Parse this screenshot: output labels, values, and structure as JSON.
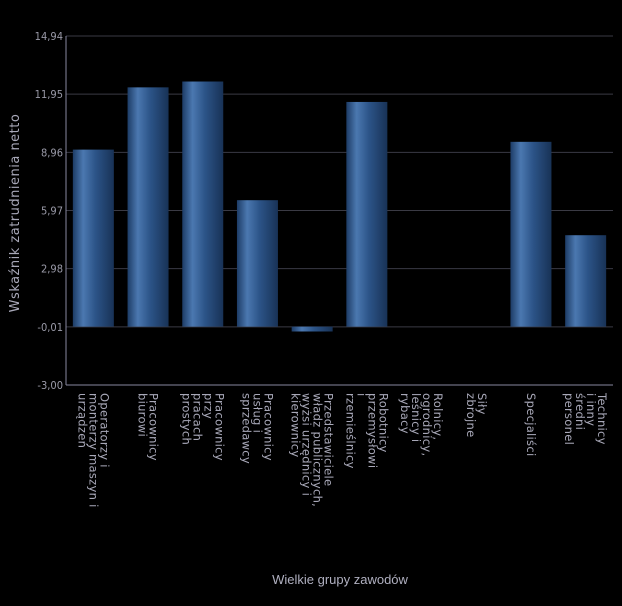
{
  "chart_data": {
    "type": "bar",
    "xlabel": "Wielkie grupy zawodów",
    "ylabel": "Wskaźnik zatrudnienia netto",
    "ylim": [
      -3.0,
      14.94
    ],
    "yticks": [
      "-3,00",
      "-0,01",
      "2,98",
      "5,97",
      "8,96",
      "11,95",
      "14,94"
    ],
    "ytick_values": [
      -3.0,
      -0.01,
      2.98,
      5.97,
      8.96,
      11.95,
      14.94
    ],
    "grid": true,
    "categories": [
      [
        "Operatorzy i",
        "monterzy maszyn i",
        "urządzeń"
      ],
      [
        "Pracownicy",
        "biurowi"
      ],
      [
        "Pracownicy",
        "przy",
        "pracach",
        "prostych"
      ],
      [
        "Pracownicy",
        "usług i",
        "sprzedawcy"
      ],
      [
        "Przedstawiciele",
        "władz publicznych,",
        "wyżsi urzędnicy i",
        "kierownicy"
      ],
      [
        "Robotnicy",
        "przemysłowi",
        "i",
        "rzemieślnicy"
      ],
      [
        "Rolnicy,",
        "ogrodnicy,",
        "leśnicy i",
        "rybacy"
      ],
      [
        "Siły",
        "zbrojne"
      ],
      [
        "Specjaliści"
      ],
      [
        "Technicy",
        "i inny",
        "średni",
        "personel"
      ]
    ],
    "values": [
      9.1,
      12.3,
      12.6,
      6.5,
      -0.25,
      11.55,
      0,
      0,
      9.5,
      4.7
    ],
    "colors": {
      "bar": "#2b5387",
      "bar_highlight": "#4d7bb4",
      "grid": "#3a3a44",
      "axis": "#8888a0"
    }
  }
}
